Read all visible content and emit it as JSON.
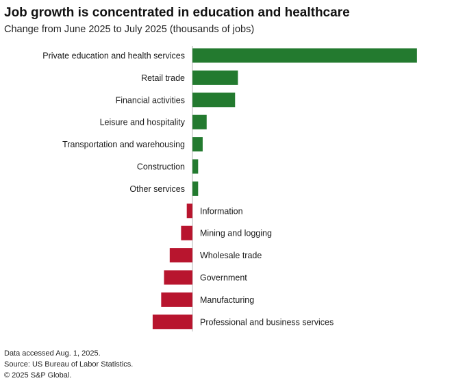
{
  "title": "Job growth is concentrated in education and healthcare",
  "subtitle": "Change from June 2025 to July 2025 (thousands of jobs)",
  "colors": {
    "positive": "#237a2f",
    "negative": "#b8152e",
    "axis": "#b5b5b5"
  },
  "chart_data": {
    "type": "bar",
    "orientation": "horizontal",
    "title": "Job growth is concentrated in education and healthcare",
    "subtitle": "Change from June 2025 to July 2025 (thousands of jobs)",
    "xlabel": "",
    "ylabel": "",
    "xlim": [
      -14,
      81
    ],
    "grid": false,
    "categories": [
      "Private education and health services",
      "Retail trade",
      "Financial activities",
      "Leisure and hospitality",
      "Transportation and warehousing",
      "Construction",
      "Other services",
      "Information",
      "Mining and logging",
      "Wholesale trade",
      "Government",
      "Manufacturing",
      "Professional and business services"
    ],
    "values": [
      79,
      16,
      15,
      5,
      3.6,
      2,
      2,
      -2,
      -4,
      -8,
      -10,
      -11,
      -14
    ]
  },
  "footer": {
    "line1": "Data accessed Aug. 1, 2025.",
    "line2": "Source: US Bureau of Labor Statistics.",
    "line3": "© 2025 S&P Global."
  }
}
